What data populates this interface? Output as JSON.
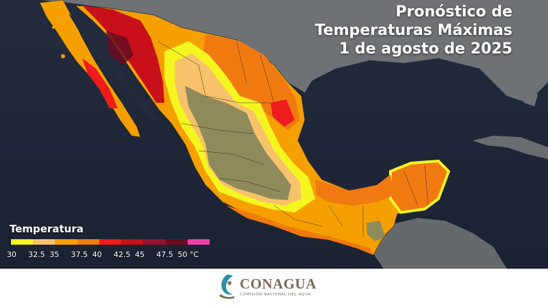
{
  "title": {
    "line1": "Pronóstico de",
    "line2": "Temperaturas Máximas",
    "line3": "1 de agosto de 2025"
  },
  "legend": {
    "title": "Temperatura",
    "colors": [
      "#f5f520",
      "#f8c26a",
      "#f5a000",
      "#f07a10",
      "#ee1c1c",
      "#c8101a",
      "#96102c",
      "#6a0c22",
      "#f040a8"
    ],
    "ticks": [
      "30",
      "32.5",
      "35",
      "37.5",
      "40",
      "42.5",
      "45",
      "47.5",
      "50 °C"
    ]
  },
  "footer": {
    "brand": "CONAGUA",
    "subtitle": "COMISIÓN NACIONAL DEL AGUA"
  }
}
